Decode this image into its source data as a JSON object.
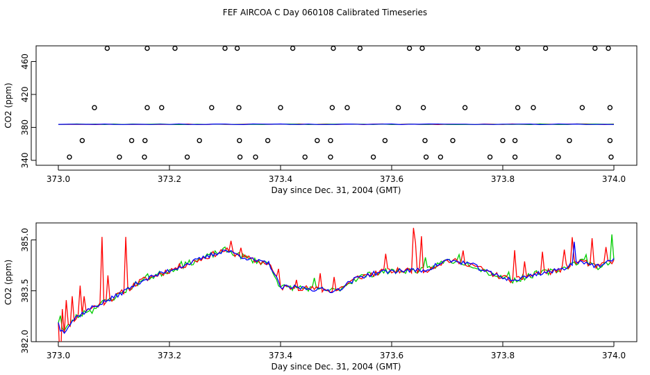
{
  "title": "FEF AIRCOA C  Day 060108  Calibrated Timeseries",
  "chart_data": [
    {
      "type": "scatter+line",
      "xlabel": "Day since Dec. 31, 2004 (GMT)",
      "ylabel": "CO2 (ppm)",
      "xlim": [
        373.0,
        374.0
      ],
      "ylim": [
        334,
        479
      ],
      "xticks": [
        "373.0",
        "373.2",
        "373.4",
        "373.6",
        "373.8",
        "374.0"
      ],
      "yticks": [
        "340",
        "380",
        "420",
        "460"
      ],
      "calibration_points": [
        [
          373.088,
          476
        ],
        [
          373.16,
          476
        ],
        [
          373.21,
          476
        ],
        [
          373.3,
          476
        ],
        [
          373.322,
          476
        ],
        [
          373.422,
          476
        ],
        [
          373.495,
          476
        ],
        [
          373.543,
          476
        ],
        [
          373.632,
          476
        ],
        [
          373.655,
          476
        ],
        [
          373.755,
          476
        ],
        [
          373.827,
          476
        ],
        [
          373.877,
          476
        ],
        [
          373.966,
          476
        ],
        [
          373.99,
          476
        ],
        [
          373.065,
          404
        ],
        [
          373.16,
          404
        ],
        [
          373.186,
          404
        ],
        [
          373.276,
          404
        ],
        [
          373.325,
          404
        ],
        [
          373.4,
          404
        ],
        [
          373.493,
          404
        ],
        [
          373.52,
          404
        ],
        [
          373.612,
          404
        ],
        [
          373.657,
          404
        ],
        [
          373.732,
          404
        ],
        [
          373.827,
          404
        ],
        [
          373.855,
          404
        ],
        [
          373.943,
          404
        ],
        [
          373.993,
          404
        ],
        [
          373.043,
          364
        ],
        [
          373.132,
          364
        ],
        [
          373.156,
          364
        ],
        [
          373.254,
          364
        ],
        [
          373.326,
          364
        ],
        [
          373.377,
          364
        ],
        [
          373.466,
          364
        ],
        [
          373.49,
          364
        ],
        [
          373.588,
          364
        ],
        [
          373.66,
          364
        ],
        [
          373.71,
          364
        ],
        [
          373.8,
          364
        ],
        [
          373.822,
          364
        ],
        [
          373.92,
          364
        ],
        [
          373.993,
          364
        ],
        [
          373.02,
          344
        ],
        [
          373.11,
          344
        ],
        [
          373.155,
          344
        ],
        [
          373.232,
          344
        ],
        [
          373.327,
          344
        ],
        [
          373.355,
          344
        ],
        [
          373.444,
          344
        ],
        [
          373.49,
          344
        ],
        [
          373.567,
          344
        ],
        [
          373.662,
          344
        ],
        [
          373.688,
          344
        ],
        [
          373.777,
          344
        ],
        [
          373.822,
          344
        ],
        [
          373.9,
          344
        ],
        [
          373.995,
          344
        ]
      ],
      "series": [
        {
          "name": "red",
          "color": "#ff0000",
          "level": 383.8
        },
        {
          "name": "green",
          "color": "#00cc00",
          "level": 383.8
        },
        {
          "name": "blue",
          "color": "#0000ff",
          "level": 383.8
        }
      ]
    },
    {
      "type": "line",
      "xlabel": "Day since Dec. 31, 2004 (GMT)",
      "ylabel": "CO2 (ppm)",
      "xlim": [
        373.0,
        374.0
      ],
      "ylim": [
        382.0,
        385.5
      ],
      "xticks": [
        "373.0",
        "373.2",
        "373.4",
        "373.6",
        "373.8",
        "374.0"
      ],
      "yticks": [
        "382.0",
        "383.5",
        "385.0"
      ],
      "keyframes": {
        "x": [
          373.0,
          373.01,
          373.03,
          373.06,
          373.1,
          373.15,
          373.2,
          373.25,
          373.3,
          373.35,
          373.38,
          373.4,
          373.43,
          373.46,
          373.5,
          373.54,
          373.58,
          373.62,
          373.66,
          373.7,
          373.74,
          373.78,
          373.82,
          373.86,
          373.9,
          373.94,
          373.97,
          374.0
        ],
        "y": [
          382.6,
          382.3,
          382.7,
          383.0,
          383.3,
          383.8,
          384.1,
          384.4,
          384.7,
          384.4,
          384.3,
          383.6,
          383.6,
          383.55,
          383.5,
          383.9,
          384.05,
          384.1,
          384.1,
          384.4,
          384.3,
          384.0,
          383.8,
          384.0,
          384.1,
          384.4,
          384.2,
          384.4
        ]
      },
      "series": [
        {
          "name": "red",
          "color": "#ff0000",
          "noise": 0.09,
          "seed": 11,
          "spikes": [
            [
              373.002,
              -1.2
            ],
            [
              373.006,
              0.6
            ],
            [
              373.014,
              0.8
            ],
            [
              373.025,
              0.7
            ],
            [
              373.04,
              0.9
            ],
            [
              373.045,
              0.5
            ],
            [
              373.08,
              1.9
            ],
            [
              373.09,
              0.8
            ],
            [
              373.12,
              1.6
            ],
            [
              373.31,
              0.3
            ],
            [
              373.33,
              0.3
            ],
            [
              373.395,
              0.4
            ],
            [
              373.43,
              0.3
            ],
            [
              373.472,
              0.5
            ],
            [
              373.495,
              0.4
            ],
            [
              373.59,
              0.6
            ],
            [
              373.64,
              1.2
            ],
            [
              373.643,
              0.9
            ],
            [
              373.652,
              1.0
            ],
            [
              373.73,
              0.3
            ],
            [
              373.82,
              0.8
            ],
            [
              373.84,
              0.5
            ],
            [
              373.87,
              0.6
            ],
            [
              373.91,
              0.5
            ],
            [
              373.925,
              0.8
            ],
            [
              373.96,
              0.7
            ],
            [
              373.985,
              0.5
            ]
          ]
        },
        {
          "name": "green",
          "color": "#00cc00",
          "noise": 0.09,
          "seed": 23,
          "spikes": [
            [
              373.005,
              0.3
            ],
            [
              373.06,
              -0.2
            ],
            [
              373.16,
              0.2
            ],
            [
              373.22,
              0.2
            ],
            [
              373.46,
              0.25
            ],
            [
              373.66,
              0.3
            ],
            [
              373.72,
              0.3
            ],
            [
              373.81,
              0.25
            ],
            [
              373.95,
              0.3
            ],
            [
              373.998,
              0.8
            ]
          ]
        },
        {
          "name": "blue",
          "color": "#0000ff",
          "noise": 0.07,
          "seed": 37,
          "spikes": [
            [
              373.004,
              -0.2
            ],
            [
              373.93,
              0.6
            ]
          ]
        }
      ]
    }
  ]
}
